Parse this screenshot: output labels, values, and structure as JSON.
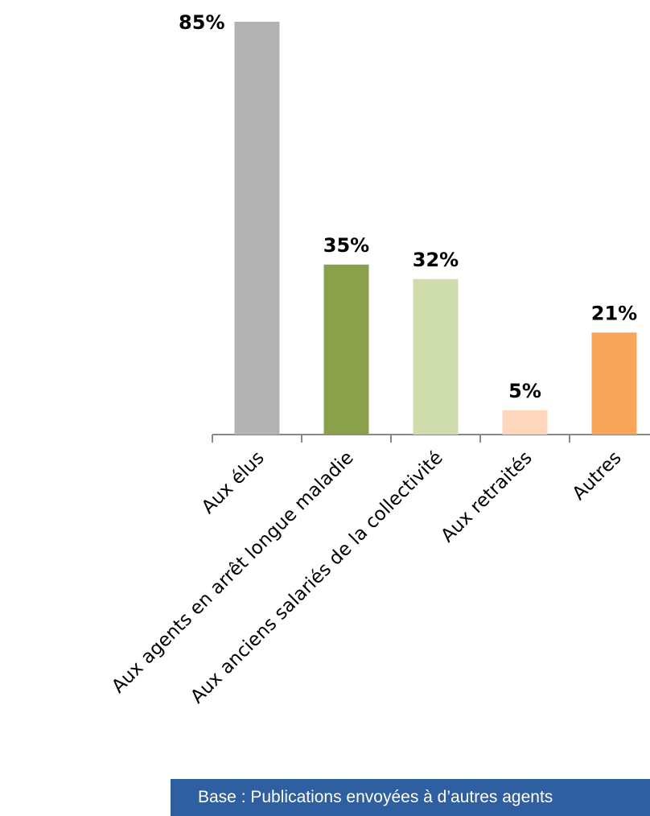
{
  "chart_data": {
    "type": "bar",
    "categories": [
      "Aux élus",
      "Aux agents en arrêt longue maladie",
      "Aux anciens salariés de la collectivité",
      "Aux retraités",
      "Autres"
    ],
    "values": [
      85,
      35,
      32,
      5,
      21
    ],
    "value_labels": [
      "85%",
      "35%",
      "32%",
      "5%",
      "21%"
    ],
    "colors": [
      "#b3b3b3",
      "#8aa04b",
      "#cfddac",
      "#fdd6bc",
      "#f8a55a"
    ],
    "ylim": [
      0,
      85
    ],
    "grid": false,
    "legend": "none",
    "xlabel": "",
    "ylabel": ""
  },
  "footer": {
    "text": "Base : Publications envoyées à d’autres agents"
  }
}
